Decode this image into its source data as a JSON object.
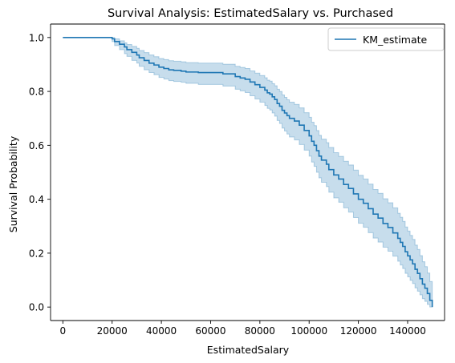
{
  "chart_data": {
    "type": "line",
    "title": "Survival Analysis: EstimatedSalary vs. Purchased",
    "xlabel": "EstimatedSalary",
    "ylabel": "Survival Probability",
    "xlim": [
      -5000,
      155000
    ],
    "ylim": [
      -0.05,
      1.05
    ],
    "xticks": [
      0,
      20000,
      40000,
      60000,
      80000,
      100000,
      120000,
      140000
    ],
    "xtick_labels": [
      "0",
      "20000",
      "40000",
      "60000",
      "80000",
      "100000",
      "120000",
      "140000"
    ],
    "yticks": [
      0.0,
      0.2,
      0.4,
      0.6,
      0.8,
      1.0
    ],
    "ytick_labels": [
      "0.0",
      "0.2",
      "0.4",
      "0.6",
      "0.8",
      "1.0"
    ],
    "grid": false,
    "legend": {
      "position": "top-right",
      "entries": [
        "KM_estimate"
      ]
    },
    "series": [
      {
        "name": "KM_estimate",
        "color": "#1f77b4",
        "ci_color": "#1f77b4",
        "step": "post",
        "x": [
          0,
          20000,
          21000,
          23000,
          25000,
          26000,
          28000,
          30000,
          31000,
          33000,
          35000,
          37000,
          39000,
          41000,
          43000,
          45000,
          48000,
          50000,
          55000,
          60000,
          65000,
          70000,
          72000,
          74000,
          76000,
          78000,
          80000,
          82000,
          83000,
          84000,
          85000,
          86000,
          87000,
          88000,
          89000,
          90000,
          91000,
          92000,
          94000,
          96000,
          98000,
          100000,
          101000,
          102000,
          103000,
          104000,
          105000,
          107000,
          108000,
          110000,
          112000,
          114000,
          116000,
          118000,
          120000,
          122000,
          124000,
          126000,
          128000,
          130000,
          132000,
          134000,
          136000,
          137000,
          138000,
          139000,
          140000,
          141000,
          142000,
          143000,
          144000,
          145000,
          146000,
          147000,
          148000,
          149000,
          150000
        ],
        "y": [
          1.0,
          0.995,
          0.985,
          0.975,
          0.965,
          0.955,
          0.945,
          0.935,
          0.925,
          0.915,
          0.905,
          0.898,
          0.89,
          0.885,
          0.88,
          0.878,
          0.875,
          0.872,
          0.87,
          0.87,
          0.865,
          0.855,
          0.85,
          0.845,
          0.835,
          0.825,
          0.815,
          0.805,
          0.795,
          0.79,
          0.78,
          0.77,
          0.755,
          0.745,
          0.73,
          0.72,
          0.71,
          0.7,
          0.69,
          0.675,
          0.655,
          0.635,
          0.615,
          0.6,
          0.58,
          0.56,
          0.545,
          0.53,
          0.51,
          0.49,
          0.475,
          0.455,
          0.44,
          0.42,
          0.4,
          0.385,
          0.365,
          0.345,
          0.33,
          0.31,
          0.295,
          0.275,
          0.255,
          0.24,
          0.225,
          0.205,
          0.19,
          0.175,
          0.16,
          0.14,
          0.125,
          0.105,
          0.085,
          0.07,
          0.05,
          0.025,
          0.0
        ],
        "ci_lower": [
          1.0,
          0.985,
          0.97,
          0.955,
          0.94,
          0.93,
          0.915,
          0.905,
          0.893,
          0.88,
          0.87,
          0.862,
          0.852,
          0.846,
          0.84,
          0.837,
          0.834,
          0.83,
          0.826,
          0.826,
          0.82,
          0.808,
          0.802,
          0.796,
          0.784,
          0.772,
          0.76,
          0.748,
          0.737,
          0.731,
          0.72,
          0.708,
          0.692,
          0.681,
          0.664,
          0.653,
          0.642,
          0.631,
          0.62,
          0.603,
          0.582,
          0.56,
          0.538,
          0.522,
          0.5,
          0.479,
          0.463,
          0.447,
          0.426,
          0.405,
          0.389,
          0.368,
          0.352,
          0.332,
          0.311,
          0.296,
          0.276,
          0.256,
          0.241,
          0.222,
          0.207,
          0.189,
          0.17,
          0.156,
          0.143,
          0.125,
          0.112,
          0.099,
          0.087,
          0.071,
          0.059,
          0.045,
          0.031,
          0.021,
          0.01,
          0.0,
          0.0
        ],
        "ci_upper": [
          1.0,
          1.0,
          0.995,
          0.988,
          0.98,
          0.974,
          0.967,
          0.96,
          0.952,
          0.944,
          0.935,
          0.929,
          0.922,
          0.918,
          0.914,
          0.912,
          0.91,
          0.907,
          0.905,
          0.905,
          0.901,
          0.893,
          0.889,
          0.885,
          0.876,
          0.868,
          0.859,
          0.851,
          0.842,
          0.838,
          0.829,
          0.821,
          0.808,
          0.8,
          0.787,
          0.778,
          0.769,
          0.76,
          0.752,
          0.739,
          0.721,
          0.704,
          0.686,
          0.673,
          0.655,
          0.637,
          0.623,
          0.61,
          0.592,
          0.573,
          0.559,
          0.541,
          0.527,
          0.508,
          0.489,
          0.475,
          0.456,
          0.436,
          0.422,
          0.402,
          0.387,
          0.368,
          0.348,
          0.333,
          0.318,
          0.297,
          0.282,
          0.266,
          0.251,
          0.23,
          0.214,
          0.191,
          0.168,
          0.15,
          0.126,
          0.095,
          0.07
        ]
      }
    ]
  }
}
